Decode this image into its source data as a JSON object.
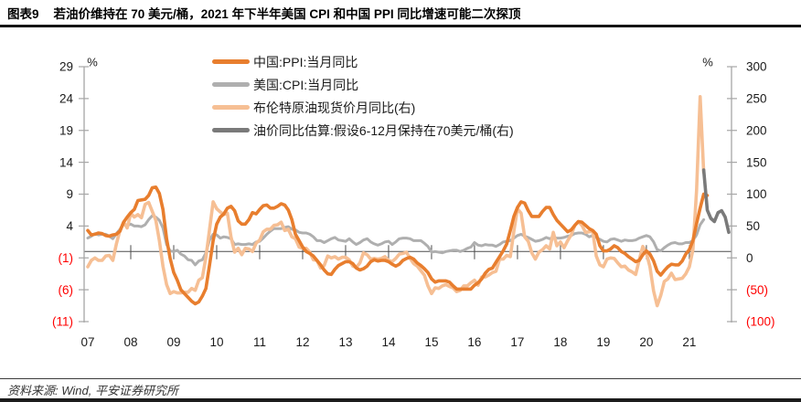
{
  "header": {
    "figure_label": "图表9",
    "title": "若油价维持在 70 美元/桶，2021 年下半年美国 CPI 和中国 PPI 同比增速可能二次探顶"
  },
  "footer": {
    "source": "资料来源: Wind, 平安证券研究所"
  },
  "chart_data": {
    "type": "line",
    "legend_position": "top-center",
    "grid": false,
    "x_axis": {
      "labels": [
        "07",
        "08",
        "09",
        "10",
        "11",
        "12",
        "13",
        "14",
        "15",
        "16",
        "17",
        "18",
        "19",
        "20",
        "21"
      ],
      "start": "2007-01",
      "end": "2021-12",
      "freq": "monthly"
    },
    "left_axis": {
      "unit": "%",
      "range": [
        -11,
        29
      ],
      "ticks": [
        "29",
        "24",
        "19",
        "14",
        "9",
        "4",
        "(1)",
        "(6)",
        "(11)"
      ],
      "tick_color": "#1a1a1a",
      "negative_color": "#ff0000"
    },
    "right_axis": {
      "unit": "%",
      "range": [
        -100,
        300
      ],
      "ticks": [
        "300",
        "250",
        "200",
        "150",
        "100",
        "50",
        "0",
        "(50)",
        "(100)"
      ],
      "tick_color": "#1a1a1a",
      "negative_color": "#ff0000"
    },
    "series": [
      {
        "id": "china-ppi",
        "name": "中国:PPI:当月同比",
        "axis": "left",
        "color": "#E87E2E",
        "width": 3.6,
        "z": 3,
        "start": "2007-01",
        "start_offset": 0,
        "values": [
          3.3,
          2.6,
          2.7,
          2.9,
          2.8,
          2.5,
          2.4,
          2.6,
          2.7,
          3.2,
          4.6,
          5.4,
          6.1,
          6.6,
          8.0,
          8.1,
          8.2,
          8.8,
          10.0,
          10.1,
          9.1,
          6.6,
          2.0,
          -1.1,
          -3.3,
          -4.5,
          -6.0,
          -6.6,
          -7.2,
          -7.8,
          -8.2,
          -7.9,
          -7.0,
          -5.8,
          -2.1,
          1.7,
          4.3,
          5.4,
          5.9,
          6.8,
          7.1,
          6.4,
          4.8,
          4.3,
          4.3,
          5.0,
          6.1,
          5.9,
          6.6,
          7.2,
          7.3,
          6.8,
          6.8,
          7.1,
          7.5,
          7.3,
          6.5,
          5.0,
          2.7,
          1.7,
          0.7,
          0.0,
          -0.3,
          -0.7,
          -1.4,
          -2.1,
          -2.9,
          -3.5,
          -3.6,
          -2.8,
          -2.2,
          -1.9,
          -1.6,
          -1.6,
          -1.9,
          -2.6,
          -2.9,
          -2.7,
          -2.3,
          -1.6,
          -1.3,
          -1.5,
          -1.4,
          -1.4,
          -1.6,
          -2.0,
          -2.3,
          -2.0,
          -1.4,
          -1.1,
          -0.9,
          -1.2,
          -1.8,
          -2.2,
          -2.7,
          -3.3,
          -4.3,
          -4.8,
          -4.6,
          -4.6,
          -4.6,
          -4.8,
          -5.4,
          -5.9,
          -5.9,
          -5.9,
          -5.9,
          -5.9,
          -5.3,
          -4.9,
          -4.3,
          -3.4,
          -2.8,
          -2.6,
          -1.7,
          -0.8,
          0.1,
          1.2,
          3.3,
          5.5,
          6.9,
          7.8,
          7.6,
          6.4,
          5.5,
          5.5,
          5.5,
          6.3,
          6.9,
          6.9,
          5.8,
          4.9,
          4.3,
          3.7,
          3.1,
          3.4,
          4.1,
          4.7,
          4.6,
          4.1,
          3.6,
          3.3,
          2.7,
          0.9,
          0.1,
          0.1,
          0.4,
          0.9,
          0.6,
          0.0,
          -0.3,
          -0.8,
          -1.2,
          -1.6,
          -1.4,
          -0.5,
          0.1,
          -0.4,
          -1.5,
          -3.1,
          -3.7,
          -3.0,
          -2.4,
          -2.0,
          -2.1,
          -2.1,
          -1.5,
          -0.4,
          0.3,
          1.7,
          4.4,
          6.8,
          9.0,
          8.8
        ]
      },
      {
        "id": "us-cpi",
        "name": "美国:CPI:当月同比",
        "axis": "left",
        "color": "#AFAFAF",
        "width": 3.0,
        "z": 1,
        "start": "2007-01",
        "start_offset": 0,
        "values": [
          2.1,
          2.4,
          2.8,
          2.6,
          2.7,
          2.7,
          2.4,
          2.0,
          2.8,
          3.5,
          4.3,
          4.1,
          4.3,
          4.0,
          4.0,
          3.9,
          4.2,
          5.0,
          5.6,
          5.4,
          4.9,
          3.7,
          1.1,
          0.1,
          0.0,
          0.2,
          -0.4,
          -0.7,
          -1.3,
          -1.4,
          -2.1,
          -1.5,
          -1.3,
          -0.2,
          1.8,
          2.7,
          2.6,
          2.1,
          2.3,
          2.2,
          2.0,
          1.1,
          1.2,
          1.1,
          1.1,
          1.2,
          1.1,
          1.5,
          1.6,
          2.1,
          2.7,
          3.2,
          3.6,
          3.6,
          3.6,
          3.8,
          3.9,
          3.5,
          3.4,
          3.0,
          2.9,
          2.9,
          2.7,
          2.3,
          1.7,
          1.7,
          1.4,
          1.7,
          2.0,
          2.2,
          1.8,
          1.7,
          1.6,
          2.0,
          1.5,
          1.1,
          1.4,
          1.8,
          2.0,
          1.5,
          1.2,
          1.0,
          1.2,
          1.5,
          1.6,
          1.1,
          1.5,
          2.0,
          2.1,
          2.1,
          2.0,
          1.7,
          1.7,
          1.7,
          1.3,
          0.8,
          -0.1,
          0.0,
          -0.1,
          -0.2,
          0.0,
          0.1,
          0.2,
          0.2,
          0.0,
          0.2,
          0.5,
          0.7,
          1.4,
          1.0,
          0.9,
          1.1,
          1.0,
          1.0,
          0.8,
          1.1,
          1.5,
          1.6,
          1.7,
          2.1,
          2.5,
          2.7,
          2.4,
          2.2,
          1.9,
          1.6,
          1.7,
          1.9,
          2.2,
          2.0,
          2.2,
          2.1,
          2.1,
          2.2,
          2.4,
          2.5,
          2.8,
          2.9,
          2.9,
          2.7,
          2.3,
          2.5,
          2.2,
          1.9,
          1.6,
          1.5,
          1.9,
          2.0,
          1.8,
          1.6,
          1.8,
          1.7,
          1.7,
          1.8,
          2.1,
          2.3,
          2.5,
          2.3,
          1.5,
          0.3,
          0.1,
          0.6,
          1.0,
          1.3,
          1.4,
          1.2,
          1.2,
          1.4,
          1.4,
          1.7,
          2.6,
          4.2,
          5.0
        ]
      },
      {
        "id": "brent",
        "name": "布伦特原油现货价月同比(右)",
        "axis": "right",
        "color": "#F6BF94",
        "width": 3.6,
        "z": 2,
        "start": "2007-01",
        "start_offset": 0,
        "values": [
          -14,
          -4,
          0,
          -4,
          -4,
          3,
          4,
          -4,
          22,
          43,
          56,
          47,
          70,
          64,
          68,
          63,
          84,
          87,
          73,
          59,
          27,
          -13,
          -42,
          -56,
          -53,
          -55,
          -55,
          -54,
          -54,
          -48,
          -51,
          -35,
          -31,
          1,
          45,
          88,
          77,
          72,
          68,
          70,
          33,
          9,
          15,
          5,
          15,
          14,
          10,
          23,
          28,
          41,
          45,
          45,
          51,
          52,
          56,
          43,
          45,
          33,
          30,
          17,
          15,
          15,
          9,
          -3,
          -4,
          -16,
          -12,
          3,
          0,
          2,
          -2,
          1,
          1,
          -3,
          -13,
          -15,
          -8,
          8,
          5,
          -2,
          -1,
          -2,
          -1,
          2,
          -4,
          -6,
          -1,
          6,
          7,
          9,
          -1,
          -9,
          -13,
          -20,
          -27,
          -44,
          -56,
          -47,
          -48,
          -44,
          -42,
          -45,
          -47,
          -53,
          -51,
          -44,
          -44,
          -39,
          -35,
          -43,
          -30,
          -30,
          -27,
          -23,
          -21,
          -2,
          -2,
          4,
          2,
          42,
          77,
          70,
          33,
          26,
          8,
          -2,
          9,
          13,
          19,
          14,
          40,
          19,
          25,
          16,
          27,
          36,
          51,
          57,
          51,
          40,
          41,
          42,
          3,
          -11,
          -14,
          -2,
          0,
          -1,
          -8,
          -14,
          -13,
          -19,
          -22,
          -26,
          -3,
          18,
          8,
          -14,
          -52,
          -75,
          -59,
          -37,
          -33,
          -24,
          -34,
          -33,
          -32,
          -25,
          -14,
          13,
          106,
          253,
          134
        ]
      },
      {
        "id": "oil-estimate",
        "name": "油价同比估算:假设6-12月保持在70美元/桶(右)",
        "axis": "right",
        "color": "#7A7A7A",
        "width": 3.6,
        "z": 4,
        "start": "2021-05",
        "start_offset": 172,
        "values": [
          138,
          75,
          62,
          57,
          71,
          74,
          64,
          40
        ]
      }
    ]
  }
}
